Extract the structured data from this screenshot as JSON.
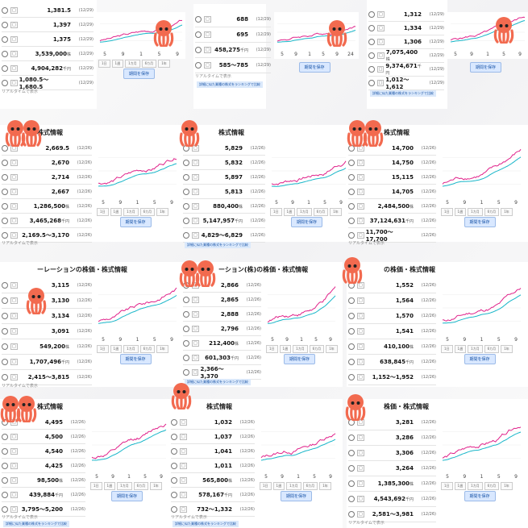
{
  "colors": {
    "octopus": "#f26a4f",
    "price_line": "#e0218a",
    "ma_line": "#19b6c9"
  },
  "tiles": [
    {
      "title": "",
      "rows": [
        {
          "v": "1,381.5",
          "u": "",
          "d": "(12/29)"
        },
        {
          "v": "1,397",
          "u": "",
          "d": "(12/29)"
        },
        {
          "v": "1,375",
          "u": "",
          "d": "(12/29)"
        },
        {
          "v": "3,539,000",
          "u": "株",
          "d": "(12/29)"
        },
        {
          "v": "4,904,282",
          "u": "千円",
          "d": "(12/29)"
        },
        {
          "v": "1,080.5〜1,680.5",
          "u": "",
          "d": "(12/29)"
        }
      ],
      "ticks": [
        "5",
        "9",
        "1",
        "5",
        "9"
      ],
      "tabs": [
        "1日",
        "1週",
        "1カ月",
        "6カ月",
        "1年"
      ],
      "save": "期間を保存",
      "realtime": "リアルタイムで表示",
      "rank": ""
    },
    {
      "title": "",
      "rows": [
        {
          "v": "688",
          "u": "",
          "d": "(12/29)"
        },
        {
          "v": "695",
          "u": "",
          "d": "(12/29)"
        },
        {
          "v": "458,275",
          "u": "千円",
          "d": "(12/29)"
        },
        {
          "v": "585〜785",
          "u": "",
          "d": "(12/29)"
        }
      ],
      "ticks": [
        "5",
        "9",
        "1",
        "5",
        "9",
        "24"
      ],
      "tabs": [],
      "save": "期間を保存",
      "realtime": "リアルタイムで表示",
      "rank": "詳細に似た業種の株式をランキングで比較"
    },
    {
      "title": "",
      "rows": [
        {
          "v": "1,312",
          "u": "",
          "d": "(12/29)"
        },
        {
          "v": "1,334",
          "u": "",
          "d": "(12/29)"
        },
        {
          "v": "1,306",
          "u": "",
          "d": "(12/29)"
        },
        {
          "v": "7,075,400",
          "u": "株",
          "d": "(12/29)"
        },
        {
          "v": "9,374,671",
          "u": "千円",
          "d": "(12/29)"
        },
        {
          "v": "1,012〜1,612",
          "u": "",
          "d": "(12/29)"
        }
      ],
      "ticks": [
        "5",
        "9",
        "1",
        "5",
        "9"
      ],
      "tabs": [],
      "save": "期間を保存",
      "realtime": "",
      "rank": "詳細に似た業種の株式をランキングで比較"
    },
    {
      "title": "株式情報",
      "rows": [
        {
          "v": "2,669.5",
          "u": "",
          "d": "(12/26)"
        },
        {
          "v": "2,670",
          "u": "",
          "d": "(12/26)"
        },
        {
          "v": "2,714",
          "u": "",
          "d": "(12/26)"
        },
        {
          "v": "2,667",
          "u": "",
          "d": "(12/26)"
        },
        {
          "v": "1,286,500",
          "u": "株",
          "d": "(12/26)"
        },
        {
          "v": "3,465,268",
          "u": "千円",
          "d": "(12/26)"
        },
        {
          "v": "2,169.5〜3,170",
          "u": "",
          "d": "(12/26)"
        }
      ],
      "ticks": [
        "5",
        "9",
        "1",
        "5",
        "9"
      ],
      "tabs": [
        "1日",
        "1週",
        "1カ月",
        "6カ月",
        "1年"
      ],
      "save": "期間を保存",
      "realtime": "リアルタイムで表示",
      "rank": ""
    },
    {
      "title": "株式情報",
      "rows": [
        {
          "v": "5,829",
          "u": "",
          "d": "(12/26)"
        },
        {
          "v": "5,832",
          "u": "",
          "d": "(12/26)"
        },
        {
          "v": "5,897",
          "u": "",
          "d": "(12/26)"
        },
        {
          "v": "5,813",
          "u": "",
          "d": "(12/26)"
        },
        {
          "v": "880,400",
          "u": "株",
          "d": "(12/26)"
        },
        {
          "v": "5,147,957",
          "u": "千円",
          "d": "(12/26)"
        },
        {
          "v": "4,829〜6,829",
          "u": "",
          "d": "(12/26)"
        }
      ],
      "ticks": [
        "5",
        "9",
        "1",
        "5",
        "9"
      ],
      "tabs": [
        "1日",
        "1週",
        "1カ月",
        "6カ月",
        "1年"
      ],
      "save": "期間を保存",
      "realtime": "",
      "rank": "詳細に似た業種の株式をランキングで比較"
    },
    {
      "title": "株式情報",
      "rows": [
        {
          "v": "14,700",
          "u": "",
          "d": "(12/26)"
        },
        {
          "v": "14,750",
          "u": "",
          "d": "(12/26)"
        },
        {
          "v": "15,115",
          "u": "",
          "d": "(12/26)"
        },
        {
          "v": "14,705",
          "u": "",
          "d": "(12/26)"
        },
        {
          "v": "2,484,500",
          "u": "株",
          "d": "(12/26)"
        },
        {
          "v": "37,124,631",
          "u": "千円",
          "d": "(12/26)"
        },
        {
          "v": "11,700〜17,700",
          "u": "",
          "d": "(12/26)"
        }
      ],
      "ticks": [
        "5",
        "9",
        "1",
        "5",
        "9"
      ],
      "tabs": [
        "1日",
        "1週",
        "1カ月",
        "6カ月",
        "1年"
      ],
      "save": "期間を保存",
      "realtime": "リアルタイムで表示",
      "rank": ""
    },
    {
      "title": "ーレーションの株価・株式情報",
      "rows": [
        {
          "v": "3,115",
          "u": "",
          "d": "(12/26)"
        },
        {
          "v": "3,130",
          "u": "",
          "d": "(12/26)"
        },
        {
          "v": "3,134",
          "u": "",
          "d": "(12/26)"
        },
        {
          "v": "3,091",
          "u": "",
          "d": "(12/26)"
        },
        {
          "v": "549,200",
          "u": "株",
          "d": "(12/26)"
        },
        {
          "v": "1,707,496",
          "u": "千円",
          "d": "(12/26)"
        },
        {
          "v": "2,415〜3,815",
          "u": "",
          "d": "(12/26)"
        }
      ],
      "ticks": [
        "5",
        "9",
        "1",
        "5",
        "9"
      ],
      "tabs": [
        "1日",
        "1週",
        "1カ月",
        "6カ月",
        "1年"
      ],
      "save": "期間を保存",
      "realtime": "リアルタイムで表示",
      "rank": ""
    },
    {
      "title": "ーション(株)の株価・株式情報",
      "rows": [
        {
          "v": "2,866",
          "u": "",
          "d": "(12/26)"
        },
        {
          "v": "2,865",
          "u": "",
          "d": "(12/26)"
        },
        {
          "v": "2,888",
          "u": "",
          "d": "(12/26)"
        },
        {
          "v": "2,796",
          "u": "",
          "d": "(12/26)"
        },
        {
          "v": "212,400",
          "u": "株",
          "d": "(12/26)"
        },
        {
          "v": "601,303",
          "u": "千円",
          "d": "(12/26)"
        },
        {
          "v": "2,366〜3,370",
          "u": "",
          "d": "(12/26)"
        }
      ],
      "ticks": [
        "5",
        "9",
        "1",
        "5",
        "9"
      ],
      "tabs": [
        "1日",
        "1週",
        "1カ月",
        "6カ月",
        "1年"
      ],
      "save": "期間を保存",
      "realtime": "",
      "rank": "詳細に似た業種の株式をランキングで比較"
    },
    {
      "title": "の株価・株式情報",
      "rows": [
        {
          "v": "1,552",
          "u": "",
          "d": "(12/26)"
        },
        {
          "v": "1,564",
          "u": "",
          "d": "(12/26)"
        },
        {
          "v": "1,570",
          "u": "",
          "d": "(12/26)"
        },
        {
          "v": "1,541",
          "u": "",
          "d": "(12/26)"
        },
        {
          "v": "410,100",
          "u": "株",
          "d": "(12/26)"
        },
        {
          "v": "638,845",
          "u": "千円",
          "d": "(12/26)"
        },
        {
          "v": "1,152〜1,952",
          "u": "",
          "d": "(12/26)"
        }
      ],
      "ticks": [
        "5",
        "9",
        "1",
        "5",
        "9"
      ],
      "tabs": [
        "1日",
        "1週",
        "1カ月",
        "6カ月",
        "1年"
      ],
      "save": "期間を保存",
      "realtime": "",
      "rank": ""
    },
    {
      "title": "株式情報",
      "rows": [
        {
          "v": "4,495",
          "u": "",
          "d": "(12/26)"
        },
        {
          "v": "4,500",
          "u": "",
          "d": "(12/26)"
        },
        {
          "v": "4,540",
          "u": "",
          "d": "(12/26)"
        },
        {
          "v": "4,425",
          "u": "",
          "d": "(12/26)"
        },
        {
          "v": "98,500",
          "u": "株",
          "d": "(12/26)"
        },
        {
          "v": "439,884",
          "u": "千円",
          "d": "(12/26)"
        },
        {
          "v": "3,795〜5,200",
          "u": "",
          "d": "(12/26)"
        }
      ],
      "ticks": [
        "5",
        "9",
        "1",
        "5",
        "9"
      ],
      "tabs": [
        "1日",
        "1週",
        "1カ月",
        "6カ月",
        "1年"
      ],
      "save": "期間を保存",
      "realtime": "リアルタイムで表示",
      "rank": "詳細に似た業種の株式をランキングで比較"
    },
    {
      "title": "株式情報",
      "rows": [
        {
          "v": "1,032",
          "u": "",
          "d": "(12/26)"
        },
        {
          "v": "1,037",
          "u": "",
          "d": "(12/26)"
        },
        {
          "v": "1,041",
          "u": "",
          "d": "(12/26)"
        },
        {
          "v": "1,011",
          "u": "",
          "d": "(12/26)"
        },
        {
          "v": "565,800",
          "u": "株",
          "d": "(12/26)"
        },
        {
          "v": "578,167",
          "u": "千円",
          "d": "(12/26)"
        },
        {
          "v": "732〜1,332",
          "u": "",
          "d": "(12/26)"
        }
      ],
      "ticks": [
        "5",
        "9",
        "1",
        "5",
        "9"
      ],
      "tabs": [
        "1日",
        "1週",
        "1カ月",
        "6カ月",
        "1年"
      ],
      "save": "期間を保存",
      "realtime": "リアルタイムで表示",
      "rank": "詳細に似た業種の株式をランキングで比較"
    },
    {
      "title": "株価・株式情報",
      "rows": [
        {
          "v": "3,281",
          "u": "",
          "d": "(12/26)"
        },
        {
          "v": "3,286",
          "u": "",
          "d": "(12/26)"
        },
        {
          "v": "3,306",
          "u": "",
          "d": "(12/26)"
        },
        {
          "v": "3,264",
          "u": "",
          "d": "(12/26)"
        },
        {
          "v": "1,385,300",
          "u": "株",
          "d": "(12/26)"
        },
        {
          "v": "4,543,692",
          "u": "千円",
          "d": "(12/26)"
        },
        {
          "v": "2,581〜3,981",
          "u": "",
          "d": "(12/26)"
        }
      ],
      "ticks": [
        "5",
        "9",
        "1",
        "5",
        "9"
      ],
      "tabs": [
        "1日",
        "1週",
        "1カ月",
        "6カ月",
        "1年"
      ],
      "save": "期間を保存",
      "realtime": "リアルタイムで表示",
      "rank": ""
    }
  ]
}
